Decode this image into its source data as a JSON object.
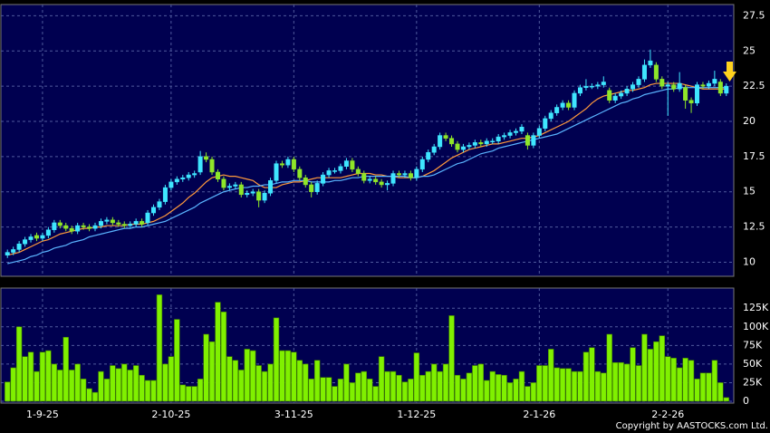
{
  "chart_data": [
    {
      "type": "candlestick",
      "open": [
        10.5,
        10.7,
        10.9,
        11.3,
        11.6,
        11.9,
        11.7,
        11.9,
        12.3,
        12.8,
        12.6,
        12.4,
        12.2,
        12.6,
        12.5,
        12.4,
        12.6,
        12.9,
        13.0,
        12.8,
        12.7,
        12.6,
        12.7,
        12.9,
        12.8,
        13.5,
        13.9,
        14.3,
        15.3,
        15.7,
        15.9,
        16.0,
        16.2,
        16.4,
        17.5,
        17.3,
        16.4,
        15.9,
        15.3,
        15.4,
        15.5,
        14.8,
        14.9,
        15.0,
        14.4,
        14.9,
        15.8,
        17.0,
        16.9,
        17.3,
        16.6,
        16.0,
        15.5,
        15.0,
        15.6,
        16.2,
        16.5,
        16.5,
        16.8,
        17.2,
        16.6,
        16.3,
        15.8,
        15.9,
        15.7,
        15.5,
        15.6,
        16.3,
        16.2,
        16.3,
        16.0,
        16.6,
        17.3,
        17.8,
        18.2,
        19.0,
        18.8,
        18.4,
        18.0,
        18.2,
        18.3,
        18.5,
        18.4,
        18.6,
        18.6,
        18.9,
        19.0,
        19.2,
        19.3,
        19.0,
        18.3,
        19.0,
        19.5,
        20.2,
        20.6,
        21.0,
        21.3,
        21.0,
        22.0,
        22.4,
        22.5,
        22.5,
        22.6,
        22.2,
        21.5,
        21.8,
        22.0,
        22.3,
        22.6,
        23.0,
        24.0,
        24.0,
        23.0,
        22.5,
        22.6,
        22.3,
        22.4,
        21.5,
        21.3,
        22.6,
        22.5,
        22.7,
        22.8,
        22.0
      ],
      "high": [
        10.9,
        11.1,
        11.5,
        11.8,
        12.0,
        12.1,
        12.1,
        12.5,
        13.0,
        13.0,
        12.8,
        12.6,
        12.8,
        12.8,
        12.7,
        12.8,
        13.1,
        13.2,
        13.2,
        13.0,
        12.9,
        12.9,
        13.1,
        13.1,
        13.7,
        14.1,
        14.5,
        15.5,
        15.9,
        16.1,
        16.2,
        16.4,
        16.5,
        17.9,
        17.8,
        17.5,
        16.6,
        16.1,
        15.6,
        15.7,
        15.7,
        15.1,
        15.2,
        15.2,
        15.1,
        16.0,
        17.2,
        17.2,
        17.5,
        17.5,
        16.8,
        16.2,
        15.7,
        15.8,
        16.4,
        16.7,
        16.7,
        17.0,
        17.4,
        17.4,
        16.8,
        16.5,
        16.1,
        16.1,
        15.9,
        15.8,
        16.5,
        16.5,
        16.5,
        16.5,
        16.8,
        17.5,
        18.0,
        18.4,
        19.2,
        19.2,
        19.0,
        18.6,
        18.4,
        18.5,
        18.7,
        18.7,
        18.8,
        18.8,
        19.1,
        19.2,
        19.4,
        19.5,
        19.8,
        19.2,
        19.2,
        19.7,
        20.4,
        20.8,
        21.2,
        21.5,
        21.5,
        22.2,
        22.6,
        23.0,
        22.7,
        22.8,
        23.2,
        22.4,
        22.0,
        22.2,
        22.5,
        22.8,
        23.2,
        24.4,
        25.1,
        24.2,
        23.2,
        22.8,
        22.8,
        23.5,
        22.6,
        21.7,
        22.8,
        22.8,
        22.9,
        23.6,
        23.0,
        22.7
      ],
      "low": [
        10.3,
        10.5,
        10.7,
        11.1,
        11.4,
        11.5,
        11.5,
        11.7,
        12.1,
        12.4,
        12.2,
        12.0,
        12.0,
        12.3,
        12.2,
        12.2,
        12.4,
        12.7,
        12.6,
        12.5,
        12.4,
        12.4,
        12.5,
        12.5,
        12.6,
        13.3,
        13.7,
        14.1,
        15.1,
        15.5,
        15.7,
        15.8,
        16.0,
        16.2,
        17.1,
        16.2,
        15.7,
        15.1,
        15.1,
        15.2,
        14.6,
        14.6,
        14.7,
        13.9,
        14.2,
        14.7,
        15.6,
        16.7,
        16.7,
        16.4,
        15.8,
        15.3,
        14.6,
        14.8,
        15.4,
        16.0,
        16.3,
        16.3,
        16.6,
        16.4,
        16.1,
        15.6,
        15.6,
        15.5,
        15.3,
        15.1,
        15.4,
        16.0,
        16.0,
        15.8,
        15.8,
        16.4,
        17.1,
        17.6,
        18.0,
        18.6,
        18.2,
        17.8,
        17.8,
        18.0,
        18.1,
        18.2,
        18.2,
        18.4,
        18.4,
        18.7,
        18.8,
        19.0,
        19.1,
        18.0,
        18.1,
        18.8,
        19.3,
        20.0,
        20.4,
        20.8,
        20.8,
        20.8,
        21.8,
        22.2,
        22.3,
        22.3,
        22.4,
        21.3,
        21.3,
        21.6,
        21.8,
        22.1,
        22.4,
        22.8,
        23.8,
        22.8,
        22.3,
        20.4,
        22.1,
        22.1,
        20.9,
        20.6,
        21.1,
        22.3,
        22.3,
        22.5,
        21.8,
        21.8
      ],
      "close": [
        10.7,
        10.9,
        11.3,
        11.6,
        11.8,
        11.7,
        11.9,
        12.3,
        12.8,
        12.6,
        12.4,
        12.2,
        12.6,
        12.5,
        12.4,
        12.6,
        12.9,
        13.0,
        12.8,
        12.7,
        12.6,
        12.7,
        12.9,
        12.7,
        13.5,
        13.9,
        14.3,
        15.3,
        15.7,
        15.9,
        16.0,
        16.2,
        16.3,
        17.5,
        17.3,
        16.4,
        15.9,
        15.3,
        15.4,
        15.5,
        14.8,
        14.9,
        15.0,
        14.4,
        14.9,
        15.8,
        17.0,
        16.9,
        17.3,
        16.6,
        16.0,
        15.5,
        15.0,
        15.6,
        16.2,
        16.5,
        16.5,
        16.8,
        17.2,
        16.6,
        16.3,
        15.8,
        15.9,
        15.7,
        15.5,
        15.6,
        16.3,
        16.2,
        16.3,
        16.0,
        16.6,
        17.3,
        17.8,
        18.2,
        19.0,
        18.8,
        18.4,
        18.0,
        18.2,
        18.3,
        18.5,
        18.4,
        18.6,
        18.6,
        18.9,
        19.0,
        19.2,
        19.3,
        19.6,
        18.3,
        19.0,
        19.5,
        20.2,
        20.6,
        21.0,
        21.3,
        21.0,
        22.0,
        22.4,
        22.5,
        22.5,
        22.6,
        22.8,
        21.5,
        21.8,
        22.0,
        22.3,
        22.6,
        23.0,
        24.0,
        24.3,
        23.0,
        22.5,
        22.6,
        22.3,
        22.7,
        21.5,
        21.3,
        22.6,
        22.5,
        22.7,
        23.0,
        22.0,
        22.5
      ],
      "up_color": "#3fe6ff",
      "down_color": "#8fe629",
      "lines": [
        {
          "color": "#ff9a3c",
          "values": [
            10.5,
            10.6,
            10.7,
            10.9,
            11.1,
            11.3,
            11.5,
            11.6,
            11.8,
            12.0,
            12.1,
            12.2,
            12.3,
            12.4,
            12.4,
            12.5,
            12.5,
            12.6,
            12.6,
            12.6,
            12.6,
            12.7,
            12.7,
            12.7,
            12.8,
            12.9,
            13.1,
            13.3,
            13.6,
            13.9,
            14.2,
            14.6,
            14.9,
            15.3,
            15.7,
            16.0,
            16.1,
            16.2,
            16.1,
            16.1,
            16.0,
            15.9,
            15.8,
            15.5,
            15.3,
            15.3,
            15.3,
            15.5,
            15.6,
            15.7,
            15.7,
            15.8,
            15.9,
            16.0,
            16.0,
            16.0,
            16.0,
            16.0,
            16.1,
            16.2,
            16.3,
            16.3,
            16.3,
            16.2,
            16.2,
            16.1,
            16.1,
            16.0,
            16.0,
            16.0,
            16.0,
            16.1,
            16.3,
            16.5,
            16.8,
            17.1,
            17.4,
            17.6,
            17.8,
            18.0,
            18.1,
            18.2,
            18.3,
            18.4,
            18.4,
            18.5,
            18.6,
            18.7,
            18.8,
            18.8,
            18.9,
            19.0,
            19.2,
            19.4,
            19.6,
            19.8,
            20.0,
            20.3,
            20.6,
            20.9,
            21.3,
            21.6,
            21.8,
            21.9,
            22.0,
            22.1,
            22.2,
            22.2,
            22.3,
            22.4,
            22.6,
            22.7,
            22.7,
            22.7,
            22.7,
            22.7,
            22.6,
            22.5,
            22.4,
            22.3,
            22.3,
            22.3,
            22.3,
            22.3
          ]
        },
        {
          "color": "#5ab4ff",
          "values": [
            9.9,
            10.0,
            10.1,
            10.2,
            10.4,
            10.5,
            10.7,
            10.8,
            11.0,
            11.1,
            11.2,
            11.4,
            11.5,
            11.6,
            11.8,
            11.9,
            12.0,
            12.1,
            12.2,
            12.3,
            12.4,
            12.4,
            12.5,
            12.5,
            12.6,
            12.7,
            12.8,
            12.9,
            13.1,
            13.3,
            13.5,
            13.7,
            13.9,
            14.2,
            14.4,
            14.6,
            14.8,
            15.0,
            15.1,
            15.2,
            15.3,
            15.3,
            15.4,
            15.4,
            15.5,
            15.5,
            15.6,
            15.7,
            15.7,
            15.8,
            15.8,
            15.8,
            15.7,
            15.7,
            15.7,
            15.7,
            15.8,
            15.8,
            15.9,
            16.0,
            16.0,
            16.1,
            16.1,
            16.1,
            16.1,
            16.1,
            16.1,
            16.1,
            16.1,
            16.0,
            16.0,
            16.1,
            16.1,
            16.2,
            16.4,
            16.6,
            16.8,
            17.0,
            17.1,
            17.3,
            17.5,
            17.7,
            17.8,
            17.9,
            18.1,
            18.2,
            18.3,
            18.4,
            18.5,
            18.6,
            18.7,
            18.8,
            18.9,
            19.0,
            19.1,
            19.3,
            19.5,
            19.7,
            19.9,
            20.1,
            20.3,
            20.5,
            20.7,
            20.9,
            21.1,
            21.3,
            21.4,
            21.6,
            21.7,
            21.9,
            22.0,
            22.1,
            22.2,
            22.3,
            22.3,
            22.4,
            22.4,
            22.4,
            22.4,
            22.4,
            22.4,
            22.4,
            22.4,
            22.4
          ]
        }
      ],
      "ylim": [
        9,
        28.3
      ],
      "yticks": [
        10,
        12.5,
        15,
        17.5,
        20,
        22.5,
        25,
        27.5
      ],
      "grid": true
    },
    {
      "type": "bar",
      "categories": [
        null,
        null,
        null,
        null,
        null,
        null,
        "1-9-25",
        null,
        null,
        null,
        null,
        null,
        null,
        null,
        null,
        null,
        null,
        null,
        null,
        null,
        null,
        null,
        null,
        null,
        null,
        null,
        null,
        null,
        "2-10-25",
        null,
        null,
        null,
        null,
        null,
        null,
        null,
        null,
        null,
        null,
        null,
        null,
        null,
        null,
        null,
        null,
        null,
        null,
        null,
        null,
        "3-11-25",
        null,
        null,
        null,
        null,
        null,
        null,
        null,
        null,
        null,
        null,
        null,
        null,
        null,
        null,
        null,
        null,
        null,
        null,
        null,
        null,
        "1-12-25",
        null,
        null,
        null,
        null,
        null,
        null,
        null,
        null,
        null,
        null,
        null,
        null,
        null,
        null,
        null,
        null,
        null,
        null,
        null,
        null,
        "2-1-26",
        null,
        null,
        null,
        null,
        null,
        null,
        null,
        null,
        null,
        null,
        null,
        null,
        null,
        null,
        null,
        null,
        null,
        null,
        null,
        null,
        null,
        "2-2-26",
        null,
        null,
        null,
        null,
        null,
        null,
        null,
        null,
        null,
        null
      ],
      "values": [
        26000,
        45000,
        100000,
        60000,
        66000,
        40000,
        66000,
        68000,
        50000,
        42000,
        86000,
        42000,
        50000,
        30000,
        17000,
        12000,
        40000,
        30000,
        48000,
        44000,
        50000,
        42000,
        48000,
        35000,
        28000,
        28000,
        143000,
        50000,
        60000,
        110000,
        22000,
        20000,
        20000,
        30000,
        90000,
        80000,
        133000,
        120000,
        60000,
        55000,
        42000,
        70000,
        68000,
        48000,
        40000,
        50000,
        112000,
        68000,
        68000,
        66000,
        55000,
        50000,
        30000,
        55000,
        32000,
        32000,
        20000,
        30000,
        50000,
        25000,
        38000,
        40000,
        30000,
        20000,
        60000,
        40000,
        40000,
        35000,
        26000,
        30000,
        65000,
        35000,
        40000,
        50000,
        40000,
        50000,
        115000,
        35000,
        30000,
        38000,
        48000,
        50000,
        28000,
        40000,
        36000,
        35000,
        25000,
        30000,
        40000,
        20000,
        25000,
        48000,
        48000,
        70000,
        45000,
        44000,
        44000,
        40000,
        40000,
        66000,
        72000,
        40000,
        38000,
        90000,
        52000,
        52000,
        50000,
        72000,
        48000,
        90000,
        70000,
        80000,
        88000,
        60000,
        58000,
        45000,
        58000,
        55000,
        30000,
        38000,
        38000,
        55000,
        25000,
        5000
      ],
      "color": "#80f000",
      "ylim": [
        0,
        152000
      ],
      "yticks": [
        0,
        {
          "value": 25000,
          "label": "25K"
        },
        {
          "value": 50000,
          "label": "50K"
        },
        {
          "value": 75000,
          "label": "75K"
        },
        {
          "value": 100000,
          "label": "100K"
        },
        {
          "value": 125000,
          "label": "125K"
        }
      ],
      "grid": true
    }
  ],
  "footer": {
    "copyright": "Copyright by AASTOCKS.com Ltd."
  }
}
